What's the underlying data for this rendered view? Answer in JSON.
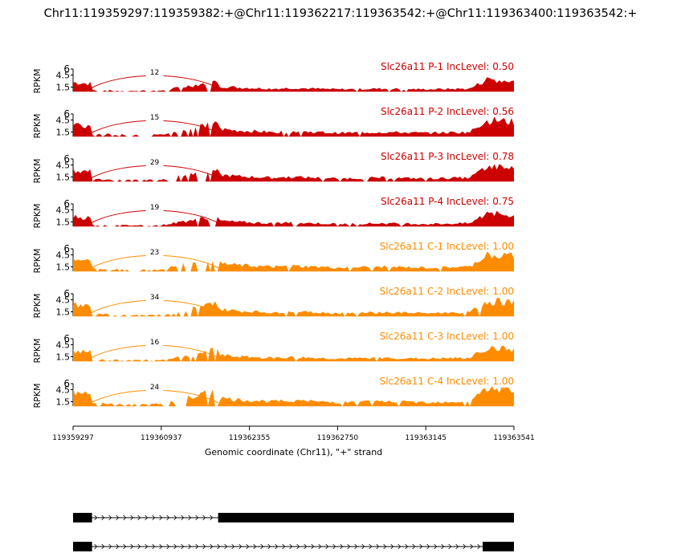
{
  "title": "Chr11:119359297:119359382:+@Chr11:119362217:119363542:+@Chr11:119363400:119363542:+",
  "colors": {
    "case": "#cc0000",
    "control": "#ff8c00",
    "axis": "#000000",
    "gene": "#000000"
  },
  "chart_data": {
    "type": "area",
    "chart_kind": "sashimi plot",
    "ylabel": "RPKM",
    "yticks": [
      "1.5",
      "4.5",
      "6"
    ],
    "ytick_values": [
      1.5,
      4.5,
      6
    ],
    "ylim": [
      0,
      6
    ],
    "xlabel": "Genomic coordinate (Chr11), \"+\" strand",
    "xticks": [
      "119359297",
      "119360937",
      "119362355",
      "119362750",
      "119363145",
      "119363541"
    ],
    "exons_relative": [
      [
        0,
        0.043
      ],
      [
        0.329,
        1.0
      ]
    ],
    "isoforms": [
      {
        "exons_relative": [
          [
            0,
            0.043
          ],
          [
            0.329,
            1.0
          ]
        ]
      },
      {
        "exons_relative": [
          [
            0,
            0.043
          ],
          [
            0.929,
            1.0
          ]
        ]
      }
    ],
    "junction_span_relative": [
      0.04,
      0.33
    ],
    "coverage_profile": {
      "x_relative": [
        0.0,
        0.04,
        0.043,
        0.1,
        0.2,
        0.329,
        0.33,
        0.37,
        0.45,
        0.5,
        0.6,
        0.7,
        0.8,
        0.9,
        0.929,
        0.93,
        0.96,
        1.0
      ],
      "relative_height": [
        0.85,
        0.75,
        0.25,
        0.2,
        0.2,
        0.95,
        0.55,
        0.45,
        0.35,
        0.4,
        0.3,
        0.35,
        0.3,
        0.35,
        0.9,
        1.0,
        1.05,
        0.95
      ]
    },
    "series": [
      {
        "name": "Slc26a11 P-1",
        "group": "case",
        "inc_level": "0.50",
        "junction_count": "12",
        "label": "Slc26a11 P-1 IncLevel: 0.50"
      },
      {
        "name": "Slc26a11 P-2",
        "group": "case",
        "inc_level": "0.56",
        "junction_count": "15",
        "label": "Slc26a11 P-2 IncLevel: 0.56"
      },
      {
        "name": "Slc26a11 P-3",
        "group": "case",
        "inc_level": "0.78",
        "junction_count": "29",
        "label": "Slc26a11 P-3 IncLevel: 0.78"
      },
      {
        "name": "Slc26a11 P-4",
        "group": "case",
        "inc_level": "0.75",
        "junction_count": "19",
        "label": "Slc26a11 P-4 IncLevel: 0.75"
      },
      {
        "name": "Slc26a11 C-1",
        "group": "control",
        "inc_level": "1.00",
        "junction_count": "23",
        "label": "Slc26a11 C-1 IncLevel: 1.00"
      },
      {
        "name": "Slc26a11 C-2",
        "group": "control",
        "inc_level": "1.00",
        "junction_count": "34",
        "label": "Slc26a11 C-2 IncLevel: 1.00"
      },
      {
        "name": "Slc26a11 C-3",
        "group": "control",
        "inc_level": "1.00",
        "junction_count": "16",
        "label": "Slc26a11 C-3 IncLevel: 1.00"
      },
      {
        "name": "Slc26a11 C-4",
        "group": "control",
        "inc_level": "1.00",
        "junction_count": "24",
        "label": "Slc26a11 C-4 IncLevel: 1.00"
      }
    ]
  }
}
